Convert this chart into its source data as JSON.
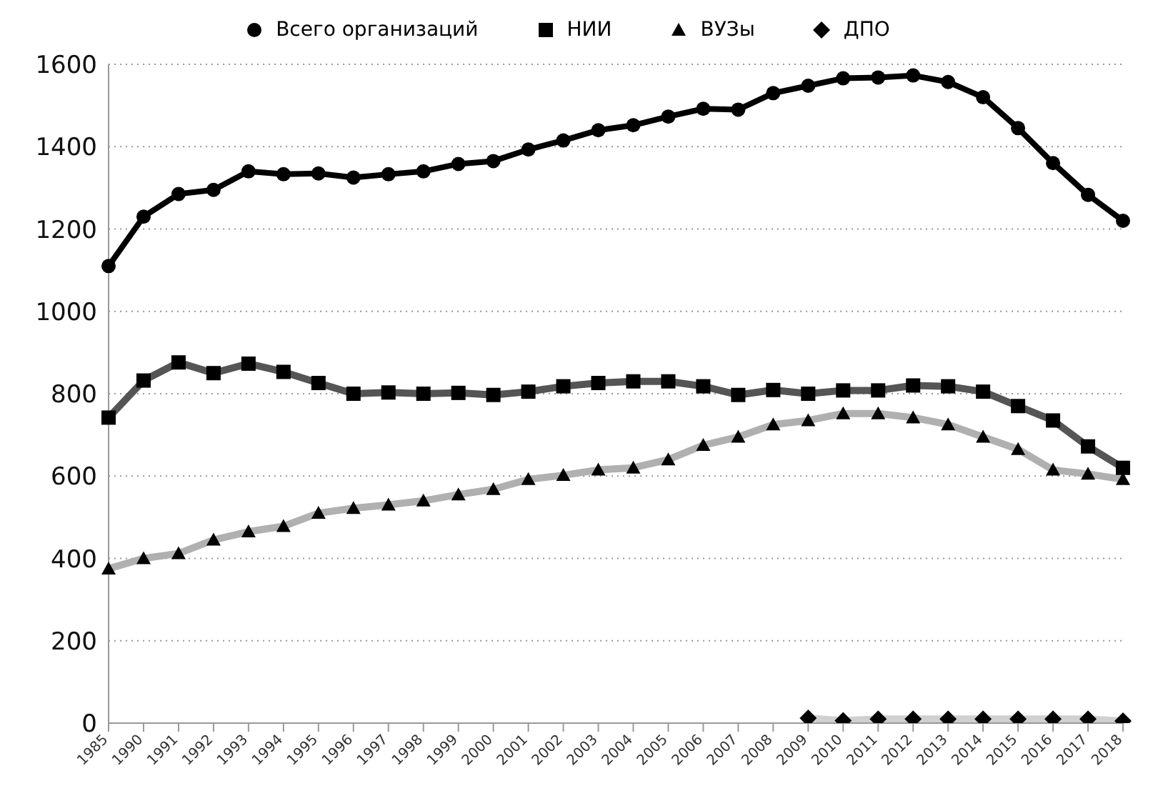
{
  "chart_data": {
    "type": "line",
    "categories": [
      "1985",
      "1990",
      "1991",
      "1992",
      "1993",
      "1994",
      "1995",
      "1996",
      "1997",
      "1998",
      "1999",
      "2000",
      "2001",
      "2002",
      "2003",
      "2004",
      "2005",
      "2006",
      "2007",
      "2008",
      "2009",
      "2010",
      "2011",
      "2012",
      "2013",
      "2014",
      "2015",
      "2016",
      "2017",
      "2018"
    ],
    "series": [
      {
        "name": "Всего организаций",
        "color": "#000000",
        "marker": "circle",
        "values": [
          1110,
          1230,
          1285,
          1295,
          1340,
          1333,
          1335,
          1325,
          1333,
          1340,
          1358,
          1365,
          1393,
          1415,
          1440,
          1452,
          1473,
          1492,
          1490,
          1530,
          1548,
          1566,
          1568,
          1573,
          1557,
          1520,
          1445,
          1360,
          1283,
          1220
        ]
      },
      {
        "name": "НИИ",
        "color": "#555555",
        "marker": "square",
        "values": [
          742,
          832,
          876,
          850,
          873,
          853,
          826,
          800,
          803,
          800,
          802,
          797,
          805,
          818,
          826,
          830,
          830,
          818,
          797,
          809,
          800,
          808,
          808,
          820,
          818,
          805,
          770,
          735,
          672,
          620
        ]
      },
      {
        "name": "ВУЗы",
        "color": "#b0b0b0",
        "marker": "triangle",
        "values": [
          375,
          400,
          412,
          445,
          465,
          478,
          510,
          522,
          530,
          540,
          555,
          568,
          592,
          602,
          615,
          620,
          640,
          675,
          695,
          725,
          735,
          752,
          752,
          742,
          725,
          695,
          665,
          615,
          605,
          592
        ]
      },
      {
        "name": "ДПО",
        "color": "#d0d0d0",
        "marker": "diamond",
        "values": [
          null,
          null,
          null,
          null,
          null,
          null,
          null,
          null,
          null,
          null,
          null,
          null,
          null,
          null,
          null,
          null,
          null,
          null,
          null,
          null,
          12,
          6,
          10,
          10,
          10,
          10,
          10,
          10,
          10,
          5
        ]
      }
    ],
    "ylim": [
      0,
      1600
    ],
    "yticks": [
      0,
      200,
      400,
      600,
      800,
      1000,
      1200,
      1400,
      1600
    ],
    "grid": "y",
    "legend": "top",
    "line_style": "solid"
  }
}
